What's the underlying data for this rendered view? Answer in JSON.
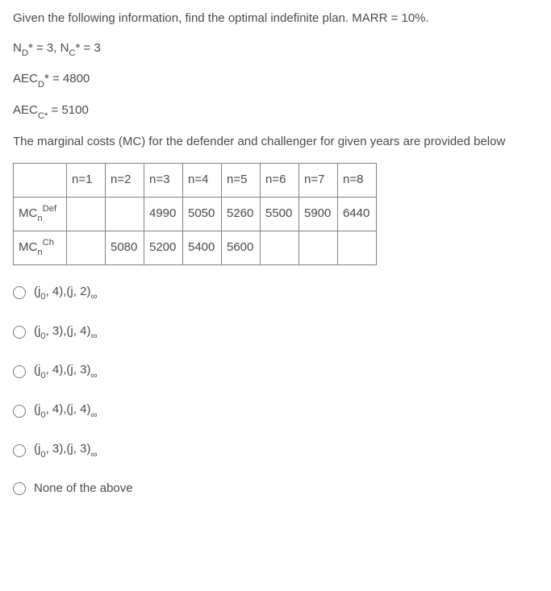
{
  "stem": {
    "l1": "Given the following information, find the optimal indefinite plan. MARR = 10%.",
    "l2_a": "N",
    "l2_b": "D",
    "l2_c": "* = 3, N",
    "l2_d": "C",
    "l2_e": "* = 3",
    "l3_a": "AEC",
    "l3_b": "D",
    "l3_c": "* = 4800",
    "l4_a": "AEC",
    "l4_b": "C*",
    "l4_c": " = 5100",
    "l5": "The marginal costs (MC) for the defender and challenger for given years are provided below"
  },
  "table": {
    "headers": [
      "n=1",
      "n=2",
      "n=3",
      "n=4",
      "n=5",
      "n=6",
      "n=7",
      "n=8"
    ],
    "row1_label_a": "MC",
    "row1_label_b": "n",
    "row1_label_c": "Def",
    "row1": [
      "",
      "",
      "4990",
      "5050",
      "5260",
      "5500",
      "5900",
      "6440"
    ],
    "row2_label_a": "MC",
    "row2_label_b": "n",
    "row2_label_c": "Ch",
    "row2": [
      "",
      "5080",
      "5200",
      "5400",
      "5600",
      "",
      "",
      ""
    ]
  },
  "options": {
    "o1_a": "(j",
    "o1_b": "0",
    "o1_c": ", 4),(j, 2)",
    "o1_d": "∞",
    "o2_a": "(j",
    "o2_b": "0",
    "o2_c": ", 3),(j, 4)",
    "o2_d": "∞",
    "o3_a": "(j",
    "o3_b": "0",
    "o3_c": ", 4),(j, 3)",
    "o3_d": "∞",
    "o4_a": "(j",
    "o4_b": "0",
    "o4_c": ", 4),(j, 4)",
    "o4_d": "∞",
    "o5_a": "(j",
    "o5_b": "0",
    "o5_c": ", 3),(j, 3)",
    "o5_d": "∞",
    "o6": "None of the above"
  }
}
